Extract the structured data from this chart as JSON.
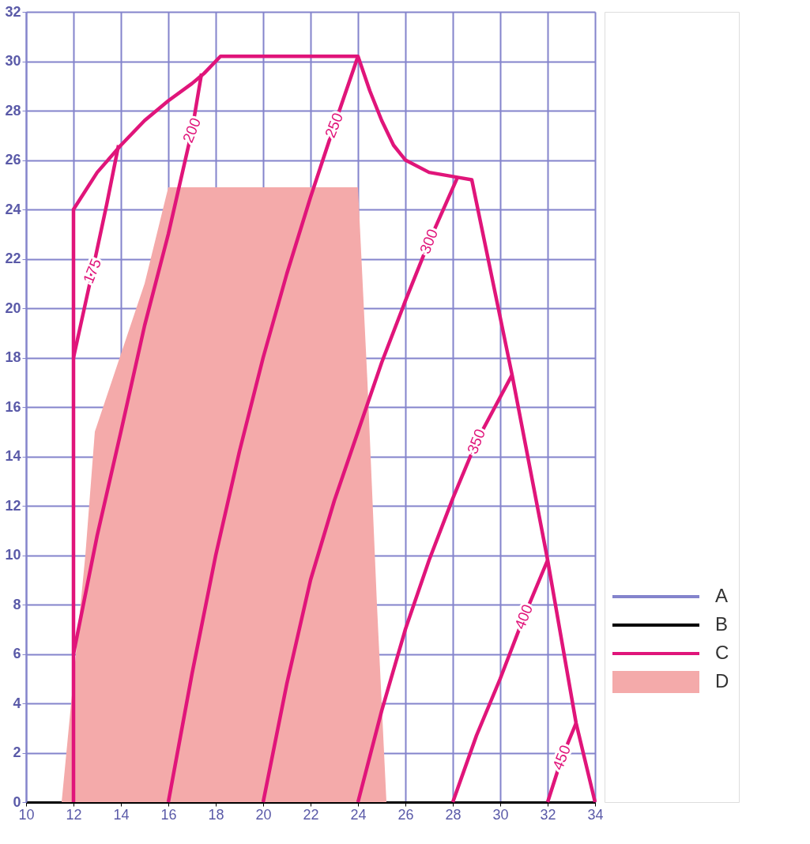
{
  "chart_data": {
    "type": "line",
    "xlim": [
      10,
      34
    ],
    "xticks": [
      10,
      12,
      14,
      16,
      18,
      20,
      22,
      24,
      26,
      28,
      30,
      32,
      34
    ],
    "ylim": [
      0,
      32
    ],
    "yticks": [
      0,
      2,
      4,
      6,
      8,
      10,
      12,
      14,
      16,
      18,
      20,
      22,
      24,
      26,
      28,
      30,
      32
    ],
    "grid": true,
    "legend": "bottom right",
    "line_style": "solid",
    "marker": "none",
    "annotations": [
      {
        "text": "175",
        "x": 12.8,
        "y": 21.5
      },
      {
        "text": "200",
        "x": 17,
        "y": 27.2
      },
      {
        "text": "250",
        "x": 23,
        "y": 27.4
      },
      {
        "text": "300",
        "x": 27,
        "y": 22.7
      },
      {
        "text": "350",
        "x": 29,
        "y": 14.6
      },
      {
        "text": "400",
        "x": 31,
        "y": 7.5
      },
      {
        "text": "450",
        "x": 32.6,
        "y": 1.8
      }
    ],
    "series": [
      {
        "name": "A",
        "type": "other",
        "color": "#8484cc"
      },
      {
        "name": "B",
        "type": "other",
        "color": "#000000"
      },
      {
        "name": "C",
        "color": "#e0157a",
        "x": [
          12,
          12,
          13,
          14,
          15,
          16,
          17,
          17.5,
          18.2,
          24,
          24.5,
          25,
          25.5,
          26,
          27,
          28.2,
          28.8,
          30.5,
          32,
          33.2,
          34
        ],
        "values": [
          0,
          24,
          25.5,
          26.6,
          27.6,
          28.4,
          29.1,
          29.5,
          30.2,
          30.2,
          28.8,
          27.6,
          26.6,
          26,
          25.5,
          25.3,
          25.2,
          17.3,
          9.8,
          3.2,
          0
        ]
      },
      {
        "color": "#e0157a",
        "x": [
          12,
          12.8,
          13.4,
          13.9
        ],
        "values": [
          18,
          21.5,
          24.2,
          26.6
        ]
      },
      {
        "color": "#e0157a",
        "x": [
          12,
          13,
          14,
          15,
          16,
          17,
          17.4
        ],
        "values": [
          6,
          10.8,
          15,
          19.3,
          23,
          27.2,
          29.5
        ]
      },
      {
        "color": "#e0157a",
        "x": [
          16,
          17,
          18,
          19,
          20,
          21,
          22,
          23,
          24
        ],
        "values": [
          0,
          5.2,
          10,
          14.2,
          18,
          21.4,
          24.5,
          27.4,
          30.2
        ]
      },
      {
        "color": "#e0157a",
        "x": [
          20,
          21,
          22,
          23,
          24,
          25,
          26,
          27,
          28.2
        ],
        "values": [
          0,
          4.8,
          9,
          12.2,
          15,
          17.8,
          20.3,
          22.7,
          25.3
        ]
      },
      {
        "color": "#e0157a",
        "x": [
          24,
          25,
          26,
          27,
          28,
          29,
          30.5
        ],
        "values": [
          0,
          3.7,
          7,
          9.8,
          12.3,
          14.6,
          17.3
        ]
      },
      {
        "color": "#e0157a",
        "x": [
          28,
          29,
          30,
          31,
          32
        ],
        "values": [
          0,
          2.7,
          5,
          7.5,
          9.8
        ]
      },
      {
        "color": "#e0157a",
        "x": [
          32,
          32.6,
          33.2
        ],
        "values": [
          0,
          1.8,
          3.2
        ]
      },
      {
        "name": "D",
        "type": "area",
        "color": "#f4aaaa",
        "x": [
          11.5,
          12.1,
          12.5,
          12.9,
          13.6,
          15,
          16,
          24,
          24.4,
          24.8,
          25.2
        ],
        "values": [
          0,
          6,
          10,
          15,
          17,
          21,
          24.9,
          24.9,
          17,
          8,
          0
        ]
      }
    ]
  }
}
